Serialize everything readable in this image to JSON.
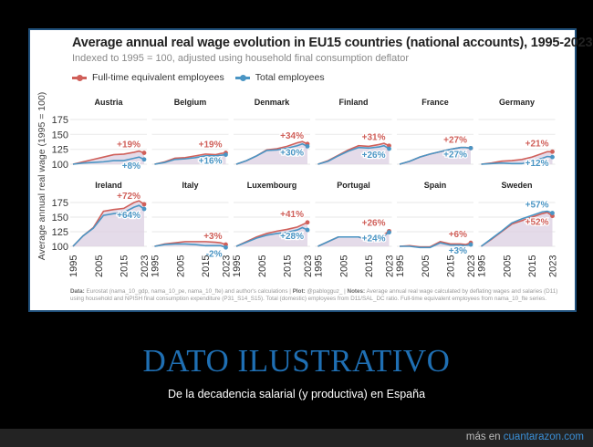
{
  "chart_data": {
    "type": "line",
    "title": "Average annual real wage evolution in EU15 countries (national accounts), 1995-2023",
    "subtitle": "Indexed to 1995 = 100, adjusted using household final consumption deflator",
    "ylabel": "Average annual real wage (1995 = 100)",
    "ylim": [
      100,
      175
    ],
    "yticks": [
      "100",
      "125",
      "150",
      "175"
    ],
    "xticks": [
      "1995",
      "2005",
      "2015",
      "2023"
    ],
    "grid": true,
    "legend_position": "top-left",
    "legend": [
      {
        "name": "Full-time equivalent employees",
        "color": "#d0605a"
      },
      {
        "name": "Total employees",
        "color": "#4a95c4"
      }
    ],
    "area_color": "#ddd2e3",
    "years": [
      1995,
      1999,
      2003,
      2007,
      2011,
      2015,
      2019,
      2021,
      2023
    ],
    "panels": [
      {
        "country": "Austria",
        "fte": [
          100,
          104,
          108,
          112,
          116,
          117,
          120,
          122,
          119
        ],
        "total": [
          100,
          102,
          103,
          104,
          106,
          106,
          110,
          112,
          108
        ],
        "fte_label": "+19%",
        "total_label": "+8%"
      },
      {
        "country": "Belgium",
        "fte": [
          100,
          104,
          110,
          111,
          114,
          117,
          116,
          118,
          119
        ],
        "total": [
          100,
          103,
          108,
          109,
          111,
          114,
          114,
          115,
          116
        ],
        "fte_label": "+19%",
        "total_label": "+16%"
      },
      {
        "country": "Denmark",
        "fte": [
          100,
          106,
          114,
          124,
          126,
          130,
          136,
          138,
          134
        ],
        "total": [
          100,
          106,
          114,
          123,
          124,
          127,
          131,
          134,
          130
        ],
        "fte_label": "+34%",
        "total_label": "+30%"
      },
      {
        "country": "Finland",
        "fte": [
          100,
          106,
          115,
          124,
          131,
          130,
          133,
          135,
          131
        ],
        "total": [
          100,
          105,
          114,
          122,
          128,
          127,
          129,
          131,
          126
        ],
        "fte_label": "+31%",
        "total_label": "+26%"
      },
      {
        "country": "France",
        "fte": [
          100,
          105,
          112,
          117,
          121,
          125,
          128,
          128,
          127
        ],
        "total": [
          100,
          105,
          112,
          117,
          121,
          125,
          128,
          128,
          127
        ],
        "fte_label": "+27%",
        "total_label": "+27%"
      },
      {
        "country": "Germany",
        "fte": [
          100,
          102,
          105,
          106,
          108,
          112,
          118,
          121,
          121
        ],
        "total": [
          100,
          101,
          102,
          101,
          101,
          105,
          110,
          113,
          112
        ],
        "fte_label": "+21%",
        "total_label": "+12%"
      },
      {
        "country": "Ireland",
        "fte": [
          100,
          118,
          132,
          160,
          163,
          165,
          175,
          178,
          172
        ],
        "total": [
          100,
          118,
          131,
          153,
          156,
          158,
          167,
          170,
          164
        ],
        "fte_label": "+72%",
        "total_label": "+64%"
      },
      {
        "country": "Italy",
        "fte": [
          100,
          104,
          106,
          108,
          108,
          108,
          107,
          106,
          103
        ],
        "total": [
          100,
          103,
          104,
          104,
          103,
          101,
          101,
          101,
          98
        ],
        "fte_label": "+3%",
        "total_label": "-2%"
      },
      {
        "country": "Luxembourg",
        "fte": [
          100,
          108,
          116,
          122,
          126,
          129,
          133,
          137,
          141
        ],
        "total": [
          100,
          107,
          114,
          119,
          122,
          124,
          128,
          132,
          128
        ],
        "fte_label": "+41%",
        "total_label": "+28%"
      },
      {
        "country": "Portugal",
        "fte": [
          100,
          108,
          116,
          116,
          116,
          110,
          114,
          120,
          126
        ],
        "total": [
          100,
          108,
          116,
          116,
          116,
          110,
          114,
          118,
          124
        ],
        "fte_label": "+26%",
        "total_label": "+24%"
      },
      {
        "country": "Spain",
        "fte": [
          100,
          101,
          99,
          99,
          108,
          104,
          104,
          103,
          106
        ],
        "total": [
          100,
          100,
          98,
          98,
          106,
          102,
          102,
          101,
          103
        ],
        "fte_label": "+6%",
        "total_label": "+3%"
      },
      {
        "country": "Sweden",
        "fte": [
          100,
          112,
          125,
          138,
          144,
          150,
          156,
          158,
          152
        ],
        "total": [
          100,
          113,
          126,
          140,
          147,
          153,
          159,
          160,
          157
        ],
        "fte_label": "+52%",
        "total_label": "+57%"
      }
    ]
  },
  "notes": {
    "data_label": "Data:",
    "data_text": " Eurostat (nama_10_gdp, nama_10_pe, nama_10_fte) and author's calculations | ",
    "plot_label": "Plot:",
    "plot_text": " @pablogguz_ | ",
    "notes_label": "Notes:",
    "notes_text": " Average annual real wage calculated by deflating wages and salaries (D11) using household and NPISH final consumption expenditure (P31_S14_S15). Total (domestic) employees from D11/SAL_DC ratio. Full-time equivalent employees from nama_10_fte series."
  },
  "post": {
    "headline": "DATO ILUSTRATIVO",
    "caption": "De la decadencia salarial (y productiva) en España"
  },
  "footer": {
    "prefix": "más en ",
    "site": "cuantarazon.com"
  }
}
